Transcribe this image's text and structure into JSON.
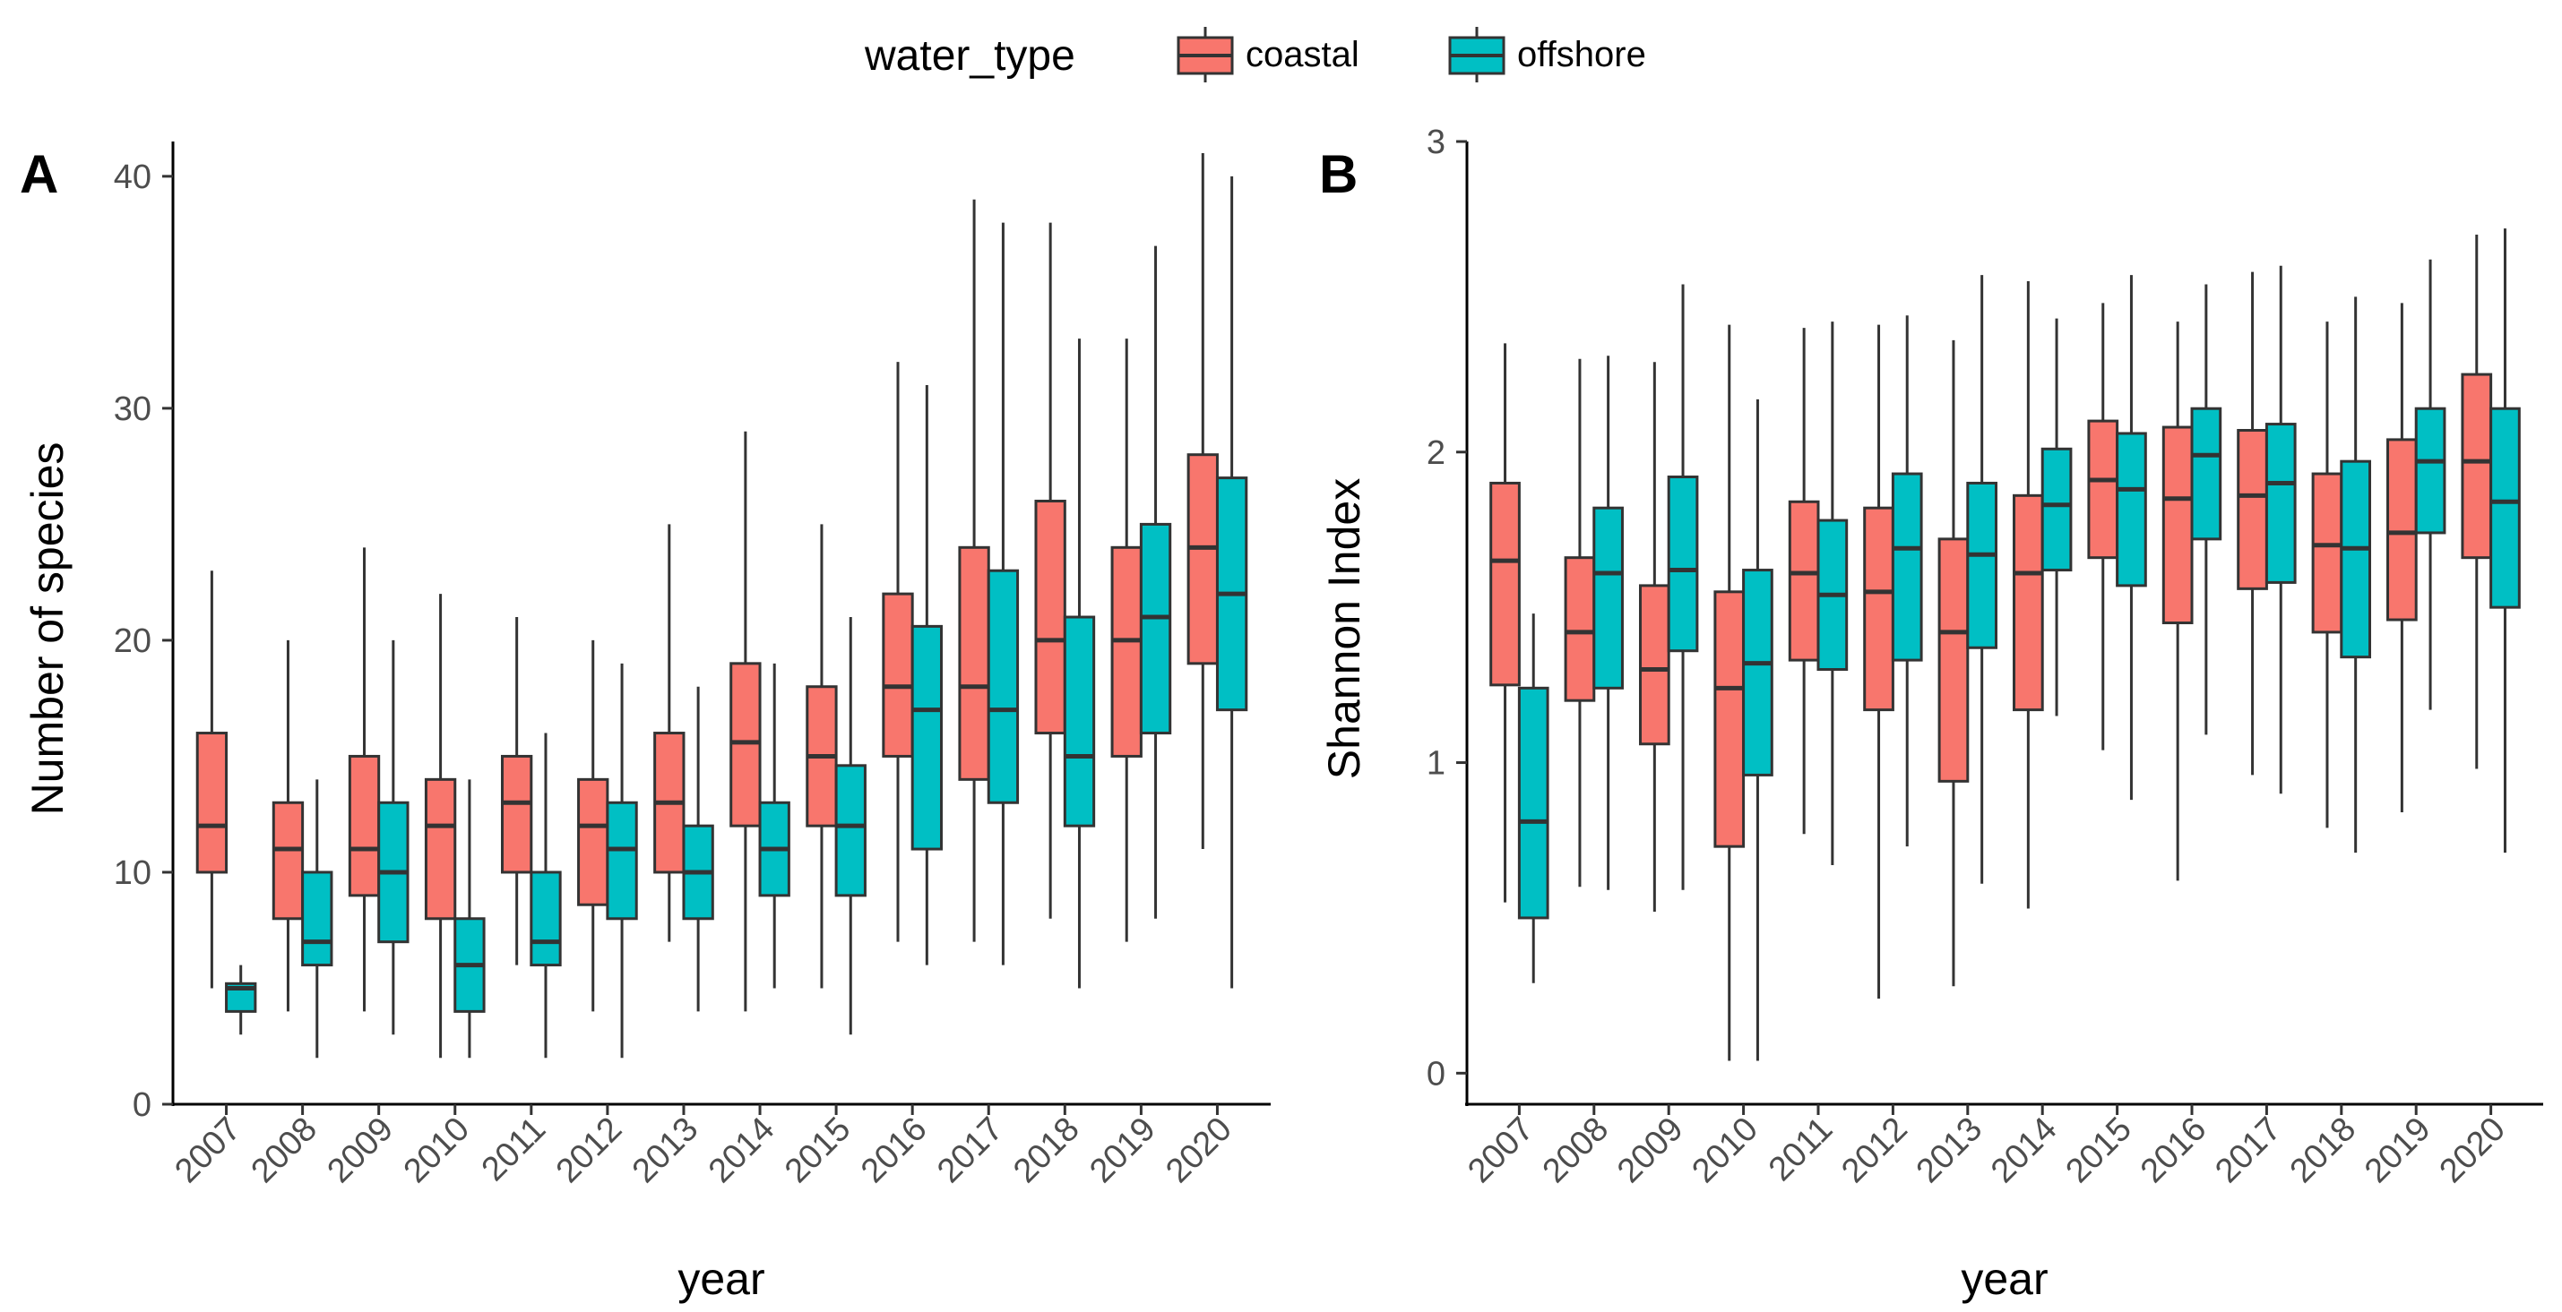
{
  "legend": {
    "title": "water_type",
    "items": [
      {
        "label": "coastal",
        "color": "#F8766D"
      },
      {
        "label": "offshore",
        "color": "#00BFC4"
      }
    ]
  },
  "chart_data": [
    {
      "type": "box",
      "panel": "A",
      "xlabel": "year",
      "ylabel": "Number of species",
      "ylim": [
        0,
        41.5
      ],
      "yticks": [
        0,
        10,
        20,
        30,
        40
      ],
      "categories": [
        "2007",
        "2008",
        "2009",
        "2010",
        "2011",
        "2012",
        "2013",
        "2014",
        "2015",
        "2016",
        "2017",
        "2018",
        "2019",
        "2020"
      ],
      "series": [
        {
          "name": "coastal",
          "color": "#F8766D",
          "boxes": [
            {
              "min": 5,
              "q1": 10,
              "median": 12,
              "q3": 16,
              "max": 23
            },
            {
              "min": 4,
              "q1": 8,
              "median": 11,
              "q3": 13,
              "max": 20
            },
            {
              "min": 4,
              "q1": 9,
              "median": 11,
              "q3": 15,
              "max": 24
            },
            {
              "min": 2,
              "q1": 8,
              "median": 12,
              "q3": 14,
              "max": 22
            },
            {
              "min": 6,
              "q1": 10,
              "median": 13,
              "q3": 15,
              "max": 21
            },
            {
              "min": 4,
              "q1": 8.6,
              "median": 12,
              "q3": 14,
              "max": 20
            },
            {
              "min": 7,
              "q1": 10,
              "median": 13,
              "q3": 16,
              "max": 25
            },
            {
              "min": 4,
              "q1": 12,
              "median": 15.6,
              "q3": 19,
              "max": 29
            },
            {
              "min": 5,
              "q1": 12,
              "median": 15,
              "q3": 18,
              "max": 25
            },
            {
              "min": 7,
              "q1": 15,
              "median": 18,
              "q3": 22,
              "max": 32
            },
            {
              "min": 7,
              "q1": 14,
              "median": 18,
              "q3": 24,
              "max": 39
            },
            {
              "min": 8,
              "q1": 16,
              "median": 20,
              "q3": 26,
              "max": 38
            },
            {
              "min": 7,
              "q1": 15,
              "median": 20,
              "q3": 24,
              "max": 33
            },
            {
              "min": 11,
              "q1": 19,
              "median": 24,
              "q3": 28,
              "max": 41
            }
          ]
        },
        {
          "name": "offshore",
          "color": "#00BFC4",
          "boxes": [
            {
              "min": 3,
              "q1": 4,
              "median": 5,
              "q3": 5.2,
              "max": 6
            },
            {
              "min": 2,
              "q1": 6,
              "median": 7,
              "q3": 10,
              "max": 14
            },
            {
              "min": 3,
              "q1": 7,
              "median": 10,
              "q3": 13,
              "max": 20
            },
            {
              "min": 2,
              "q1": 4,
              "median": 6,
              "q3": 8,
              "max": 14
            },
            {
              "min": 2,
              "q1": 6,
              "median": 7,
              "q3": 10,
              "max": 16
            },
            {
              "min": 2,
              "q1": 8,
              "median": 11,
              "q3": 13,
              "max": 19
            },
            {
              "min": 4,
              "q1": 8,
              "median": 10,
              "q3": 12,
              "max": 18
            },
            {
              "min": 5,
              "q1": 9,
              "median": 11,
              "q3": 13,
              "max": 19
            },
            {
              "min": 3,
              "q1": 9,
              "median": 12,
              "q3": 14.6,
              "max": 21
            },
            {
              "min": 6,
              "q1": 11,
              "median": 17,
              "q3": 20.6,
              "max": 31
            },
            {
              "min": 6,
              "q1": 13,
              "median": 17,
              "q3": 23,
              "max": 38
            },
            {
              "min": 5,
              "q1": 12,
              "median": 15,
              "q3": 21,
              "max": 33
            },
            {
              "min": 8,
              "q1": 16,
              "median": 21,
              "q3": 25,
              "max": 37
            },
            {
              "min": 5,
              "q1": 17,
              "median": 22,
              "q3": 27,
              "max": 40
            }
          ]
        }
      ]
    },
    {
      "type": "box",
      "panel": "B",
      "xlabel": "year",
      "ylabel": "Shannon Index",
      "ylim": [
        -0.1,
        3.0
      ],
      "yticks": [
        0,
        1,
        2,
        3
      ],
      "categories": [
        "2007",
        "2008",
        "2009",
        "2010",
        "2011",
        "2012",
        "2013",
        "2014",
        "2015",
        "2016",
        "2017",
        "2018",
        "2019",
        "2020"
      ],
      "series": [
        {
          "name": "coastal",
          "color": "#F8766D",
          "boxes": [
            {
              "min": 0.55,
              "q1": 1.25,
              "median": 1.65,
              "q3": 1.9,
              "max": 2.35
            },
            {
              "min": 0.6,
              "q1": 1.2,
              "median": 1.42,
              "q3": 1.66,
              "max": 2.3
            },
            {
              "min": 0.52,
              "q1": 1.06,
              "median": 1.3,
              "q3": 1.57,
              "max": 2.29
            },
            {
              "min": 0.04,
              "q1": 0.73,
              "median": 1.24,
              "q3": 1.55,
              "max": 2.41
            },
            {
              "min": 0.77,
              "q1": 1.33,
              "median": 1.61,
              "q3": 1.84,
              "max": 2.4
            },
            {
              "min": 0.24,
              "q1": 1.17,
              "median": 1.55,
              "q3": 1.82,
              "max": 2.41
            },
            {
              "min": 0.28,
              "q1": 0.94,
              "median": 1.42,
              "q3": 1.72,
              "max": 2.36
            },
            {
              "min": 0.53,
              "q1": 1.17,
              "median": 1.61,
              "q3": 1.86,
              "max": 2.55
            },
            {
              "min": 1.04,
              "q1": 1.66,
              "median": 1.91,
              "q3": 2.1,
              "max": 2.48
            },
            {
              "min": 0.62,
              "q1": 1.45,
              "median": 1.85,
              "q3": 2.08,
              "max": 2.42
            },
            {
              "min": 0.96,
              "q1": 1.56,
              "median": 1.86,
              "q3": 2.07,
              "max": 2.58
            },
            {
              "min": 0.79,
              "q1": 1.42,
              "median": 1.7,
              "q3": 1.93,
              "max": 2.42
            },
            {
              "min": 0.84,
              "q1": 1.46,
              "median": 1.74,
              "q3": 2.04,
              "max": 2.48
            },
            {
              "min": 0.98,
              "q1": 1.66,
              "median": 1.97,
              "q3": 2.25,
              "max": 2.7
            }
          ]
        },
        {
          "name": "offshore",
          "color": "#00BFC4",
          "boxes": [
            {
              "min": 0.29,
              "q1": 0.5,
              "median": 0.81,
              "q3": 1.24,
              "max": 1.48
            },
            {
              "min": 0.59,
              "q1": 1.24,
              "median": 1.61,
              "q3": 1.82,
              "max": 2.31
            },
            {
              "min": 0.59,
              "q1": 1.36,
              "median": 1.62,
              "q3": 1.92,
              "max": 2.54
            },
            {
              "min": 0.04,
              "q1": 0.96,
              "median": 1.32,
              "q3": 1.62,
              "max": 2.17
            },
            {
              "min": 0.67,
              "q1": 1.3,
              "median": 1.54,
              "q3": 1.78,
              "max": 2.42
            },
            {
              "min": 0.73,
              "q1": 1.33,
              "median": 1.69,
              "q3": 1.93,
              "max": 2.44
            },
            {
              "min": 0.61,
              "q1": 1.37,
              "median": 1.67,
              "q3": 1.9,
              "max": 2.57
            },
            {
              "min": 1.15,
              "q1": 1.62,
              "median": 1.83,
              "q3": 2.01,
              "max": 2.43
            },
            {
              "min": 0.88,
              "q1": 1.57,
              "median": 1.88,
              "q3": 2.06,
              "max": 2.57
            },
            {
              "min": 1.09,
              "q1": 1.72,
              "median": 1.99,
              "q3": 2.14,
              "max": 2.54
            },
            {
              "min": 0.9,
              "q1": 1.58,
              "median": 1.9,
              "q3": 2.09,
              "max": 2.6
            },
            {
              "min": 0.71,
              "q1": 1.34,
              "median": 1.69,
              "q3": 1.97,
              "max": 2.5
            },
            {
              "min": 1.17,
              "q1": 1.74,
              "median": 1.97,
              "q3": 2.14,
              "max": 2.62
            },
            {
              "min": 0.71,
              "q1": 1.5,
              "median": 1.84,
              "q3": 2.14,
              "max": 2.72
            }
          ]
        }
      ]
    }
  ]
}
